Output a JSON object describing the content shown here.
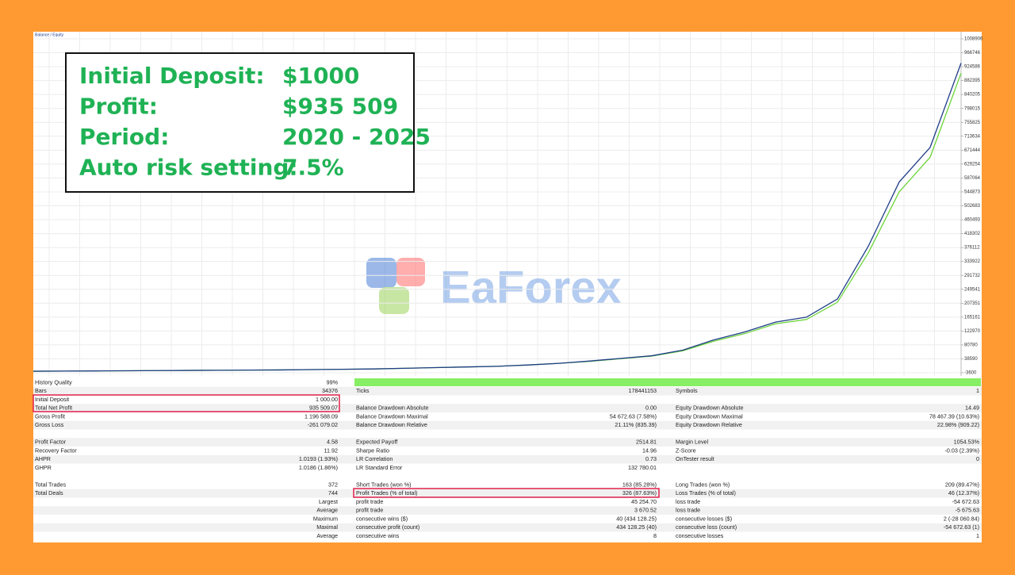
{
  "legend": "Balance / Equity",
  "summary": {
    "rows": [
      {
        "label": "Initial Deposit:",
        "value": "$1000"
      },
      {
        "label": "Profit:",
        "value": "$935 509"
      },
      {
        "label": "Period:",
        "value": "2020 - 2025"
      },
      {
        "label": "Auto risk setting:",
        "value": "7.5%"
      }
    ]
  },
  "watermark": "EaForex",
  "chart_data": {
    "type": "line",
    "grid": true,
    "ylim": [
      -3600,
      1008906
    ],
    "yticks": [
      1008906,
      966746,
      924586,
      882395,
      840205,
      798015,
      755825,
      713634,
      671444,
      629254,
      587064,
      544873,
      502683,
      460493,
      418302,
      376112,
      333922,
      291732,
      249541,
      207351,
      165161,
      122970,
      80780,
      38590,
      -3600
    ],
    "series": [
      {
        "color": "#1f3c88",
        "values": [
          1000,
          1500,
          2000,
          2500,
          3000,
          3500,
          4000,
          4500,
          5000,
          6000,
          7000,
          8000,
          10000,
          12000,
          14000,
          16000,
          20000,
          25000,
          32000,
          40000,
          48000,
          65000,
          96000,
          120000,
          150000,
          165000,
          220000,
          380000,
          575000,
          680000,
          935509
        ]
      },
      {
        "color": "#6cd43a",
        "values": [
          1000,
          1500,
          2000,
          2500,
          3000,
          3500,
          4000,
          4500,
          5000,
          6000,
          7000,
          8000,
          10000,
          12000,
          14000,
          16000,
          20000,
          25000,
          31000,
          39000,
          47000,
          63000,
          92000,
          115000,
          145000,
          158000,
          210000,
          360000,
          545000,
          650000,
          905000
        ]
      }
    ]
  },
  "stats": {
    "groups": [
      [
        [
          {
            "label": "History Quality",
            "value": "99%"
          },
          null,
          null
        ],
        [
          {
            "label": "Bars",
            "value": "34376"
          },
          {
            "label": "Ticks",
            "value": "178441153"
          },
          {
            "label": "Symbols",
            "value": "1"
          }
        ],
        [
          {
            "label": "Initial Deposit",
            "value": "1 000.00"
          },
          null,
          null
        ],
        [
          {
            "label": "Total Net Profit",
            "value": "935 509.07"
          },
          {
            "label": "Balance Drawdown Absolute",
            "value": "0.00"
          },
          {
            "label": "Equity Drawdown Absolute",
            "value": "14.49"
          }
        ],
        [
          {
            "label": "Gross Profit",
            "value": "1 196 588.09"
          },
          {
            "label": "Balance Drawdown Maximal",
            "value": "54 672.63 (7.58%)"
          },
          {
            "label": "Equity Drawdown Maximal",
            "value": "78 467.39 (10.63%)"
          }
        ],
        [
          {
            "label": "Gross Loss",
            "value": "-261 079.02"
          },
          {
            "label": "Balance Drawdown Relative",
            "value": "21.11% (835.39)"
          },
          {
            "label": "Equity Drawdown Relative",
            "value": "22.98% (909.22)"
          }
        ]
      ],
      [
        [
          {
            "label": "Profit Factor",
            "value": "4.58"
          },
          {
            "label": "Expected Payoff",
            "value": "2514.81"
          },
          {
            "label": "Margin Level",
            "value": "1054.53%"
          }
        ],
        [
          {
            "label": "Recovery Factor",
            "value": "11.92"
          },
          {
            "label": "Sharpe Ratio",
            "value": "14.96"
          },
          {
            "label": "Z-Score",
            "value": "-0.03 (2.39%)"
          }
        ],
        [
          {
            "label": "AHPR",
            "value": "1.0193 (1.93%)"
          },
          {
            "label": "LR Correlation",
            "value": "0.73"
          },
          {
            "label": "OnTester result",
            "value": "0"
          }
        ],
        [
          {
            "label": "GHPR",
            "value": "1.0186 (1.86%)"
          },
          {
            "label": "LR Standard Error",
            "value": "132 780.01"
          },
          null
        ]
      ],
      [
        [
          {
            "label": "Total Trades",
            "value": "372"
          },
          {
            "label": "Short Trades (won %)",
            "value": "163 (85.28%)"
          },
          {
            "label": "Long Trades (won %)",
            "value": "209 (89.47%)"
          }
        ],
        [
          {
            "label": "Total Deals",
            "value": "744"
          },
          {
            "label": "Profit Trades (% of total)",
            "value": "326 (87.63%)"
          },
          {
            "label": "Loss Trades (% of total)",
            "value": "46 (12.37%)"
          }
        ],
        [
          {
            "label": "Largest"
          },
          {
            "label": "profit trade",
            "value": "45 254.70"
          },
          {
            "label": "loss trade",
            "value": "-54 672.63"
          }
        ],
        [
          {
            "label": "Average"
          },
          {
            "label": "profit trade",
            "value": "3 670.52"
          },
          {
            "label": "loss trade",
            "value": "-5 675.63"
          }
        ],
        [
          {
            "label": "Maximum"
          },
          {
            "label": "consecutive wins ($)",
            "value": "40 (434 128.25)"
          },
          {
            "label": "consecutive losses ($)",
            "value": "2 (-28 060.84)"
          }
        ],
        [
          {
            "label": "Maximal"
          },
          {
            "label": "consecutive profit (count)",
            "value": "434 128.25 (40)"
          },
          {
            "label": "consecutive loss (count)",
            "value": "-54 672.63 (1)"
          }
        ],
        [
          {
            "label": "Average"
          },
          {
            "label": "consecutive wins",
            "value": "8"
          },
          {
            "label": "consecutive losses",
            "value": "1"
          }
        ]
      ]
    ]
  }
}
